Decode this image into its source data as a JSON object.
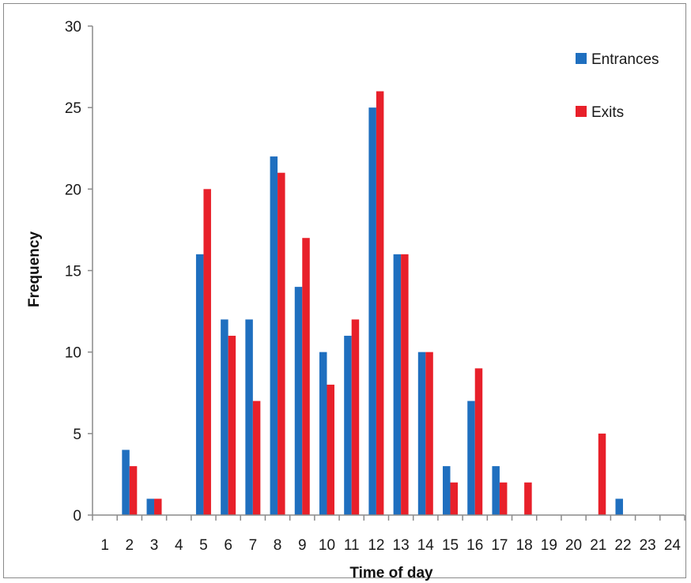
{
  "chart_data": {
    "type": "bar",
    "title": "",
    "xlabel": "Time of day",
    "ylabel": "Frequency",
    "ylim": [
      0,
      30
    ],
    "yticks": [
      0,
      5,
      10,
      15,
      20,
      25,
      30
    ],
    "categories": [
      "1",
      "2",
      "3",
      "4",
      "5",
      "6",
      "7",
      "8",
      "9",
      "10",
      "11",
      "12",
      "13",
      "14",
      "15",
      "16",
      "17",
      "18",
      "19",
      "20",
      "21",
      "22",
      "23",
      "24"
    ],
    "series": [
      {
        "name": "Entrances",
        "color": "#1f6fbf",
        "values": [
          0,
          4,
          1,
          0,
          16,
          12,
          12,
          22,
          14,
          10,
          11,
          25,
          16,
          10,
          3,
          7,
          3,
          0,
          0,
          0,
          0,
          1,
          0,
          0
        ]
      },
      {
        "name": "Exits",
        "color": "#e8202a",
        "values": [
          0,
          3,
          1,
          0,
          20,
          11,
          7,
          21,
          17,
          8,
          12,
          26,
          16,
          10,
          2,
          9,
          2,
          2,
          0,
          0,
          5,
          0,
          0,
          0
        ]
      }
    ],
    "legend_position": "top-right",
    "grid": false
  }
}
